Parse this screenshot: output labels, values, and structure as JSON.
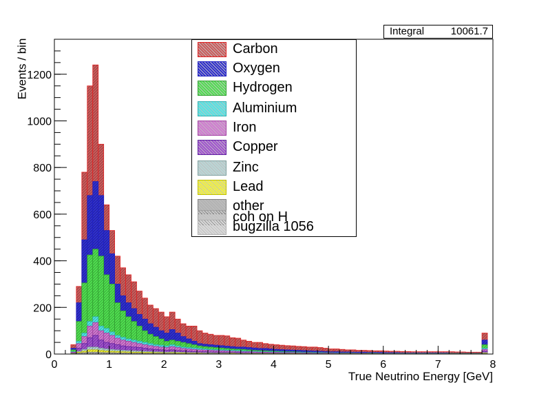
{
  "chart_data": {
    "type": "bar",
    "xlabel": "True Neutrino Energy [GeV]",
    "ylabel": "Events / bin",
    "xlim": [
      0,
      8
    ],
    "ylim": [
      0,
      1350
    ],
    "x_ticks": [
      0,
      1,
      2,
      3,
      4,
      5,
      6,
      7,
      8
    ],
    "y_ticks": [
      0,
      200,
      400,
      600,
      800,
      1000,
      1200
    ],
    "bin_width": 0.1,
    "bin_edges_start": 0.3,
    "stats": {
      "label": "Integral",
      "value": "10061.7"
    },
    "series": [
      {
        "name": "Carbon",
        "color": "#cc5b5b",
        "edge": "#e02020",
        "values": [
          40,
          290,
          780,
          1150,
          1240,
          900,
          640,
          530,
          420,
          370,
          340,
          310,
          270,
          240,
          210,
          195,
          180,
          160,
          180,
          150,
          130,
          120,
          120,
          100,
          90,
          85,
          80,
          80,
          78,
          70,
          68,
          60,
          55,
          50,
          50,
          45,
          42,
          40,
          38,
          36,
          35,
          33,
          32,
          30,
          30,
          28,
          25,
          22,
          22,
          20,
          18,
          18,
          16,
          16,
          15,
          14,
          14,
          13,
          12,
          12,
          11,
          11,
          10,
          10,
          10,
          10,
          10,
          10,
          10,
          10,
          9,
          9,
          8,
          8,
          8,
          90
        ]
      },
      {
        "name": "Oxygen",
        "color": "#2f2fd0",
        "edge": "#2020c0",
        "values": [
          25,
          220,
          490,
          680,
          740,
          680,
          530,
          430,
          300,
          250,
          220,
          195,
          170,
          150,
          130,
          115,
          100,
          90,
          105,
          90,
          75,
          65,
          55,
          45,
          42,
          40,
          38,
          36,
          34,
          32,
          30,
          30,
          28,
          26,
          24,
          24,
          22,
          20,
          19,
          18,
          17,
          16,
          15,
          14,
          13,
          12,
          11,
          10,
          10,
          9,
          9,
          8,
          8,
          8,
          7,
          7,
          7,
          6,
          6,
          6,
          5,
          5,
          5,
          5,
          5,
          5,
          5,
          5,
          5,
          4,
          4,
          4,
          4,
          4,
          4,
          60
        ]
      },
      {
        "name": "Hydrogen",
        "color": "#50e050",
        "edge": "#30a030",
        "values": [
          18,
          140,
          305,
          425,
          450,
          420,
          340,
          300,
          220,
          185,
          160,
          140,
          120,
          100,
          85,
          75,
          65,
          55,
          60,
          55,
          50,
          45,
          40,
          35,
          32,
          30,
          28,
          26,
          24,
          22,
          21,
          20,
          18,
          16,
          15,
          14,
          13,
          12,
          11,
          10,
          10,
          9,
          8,
          8,
          7,
          7,
          6,
          6,
          5,
          5,
          5,
          5,
          4,
          4,
          4,
          4,
          3,
          3,
          3,
          3,
          3,
          3,
          3,
          3,
          3,
          3,
          3,
          3,
          3,
          3,
          3,
          3,
          3,
          3,
          3,
          40
        ]
      },
      {
        "name": "Aluminium",
        "color": "#50e6e6",
        "edge": "#30b0b0",
        "values": [
          10,
          55,
          90,
          140,
          160,
          120,
          110,
          95,
          80,
          72,
          65,
          60,
          55,
          50,
          45,
          40,
          38,
          35,
          40,
          35,
          30,
          28,
          26,
          24,
          22,
          20,
          19,
          18,
          17,
          16,
          15,
          14,
          13,
          12,
          11,
          10,
          10,
          9,
          9,
          8,
          8,
          7,
          7,
          6,
          6,
          6,
          5,
          5,
          5,
          4,
          4,
          4,
          4,
          3,
          3,
          3,
          3,
          3,
          3,
          3,
          3,
          3,
          3,
          3,
          3,
          3,
          3,
          3,
          3,
          2,
          2,
          2,
          2,
          2,
          2,
          25
        ]
      },
      {
        "name": "Iron",
        "color": "#d277d2",
        "edge": "#a040a0",
        "values": [
          8,
          45,
          75,
          120,
          135,
          100,
          90,
          80,
          68,
          60,
          55,
          50,
          45,
          40,
          36,
          33,
          30,
          28,
          32,
          28,
          24,
          22,
          20,
          18,
          17,
          16,
          15,
          14,
          13,
          12,
          11,
          10,
          10,
          9,
          8,
          8,
          7,
          7,
          6,
          6,
          6,
          5,
          5,
          5,
          4,
          4,
          4,
          4,
          3,
          3,
          3,
          3,
          3,
          3,
          2,
          2,
          2,
          2,
          2,
          2,
          2,
          2,
          2,
          2,
          2,
          2,
          2,
          2,
          2,
          2,
          2,
          2,
          2,
          2,
          2,
          20
        ]
      },
      {
        "name": "Copper",
        "color": "#a050d0",
        "edge": "#6020a0",
        "values": [
          5,
          25,
          45,
          70,
          80,
          60,
          50,
          45,
          40,
          35,
          32,
          30,
          28,
          25,
          22,
          20,
          18,
          16,
          18,
          15,
          14,
          12,
          11,
          10,
          10,
          9,
          9,
          8,
          8,
          7,
          7,
          6,
          6,
          5,
          5,
          5,
          4,
          4,
          4,
          4,
          3,
          3,
          3,
          3,
          3,
          3,
          2,
          2,
          2,
          2,
          2,
          2,
          2,
          2,
          2,
          2,
          2,
          2,
          2,
          1,
          1,
          1,
          1,
          1,
          1,
          1,
          1,
          1,
          1,
          1,
          1,
          1,
          1,
          1,
          1,
          12
        ]
      },
      {
        "name": "Zinc",
        "color": "#b9d6d6",
        "edge": "#80a0a0",
        "values": [
          3,
          12,
          20,
          30,
          30,
          25,
          22,
          20,
          18,
          16,
          15,
          14,
          13,
          12,
          11,
          10,
          9,
          8,
          9,
          8,
          7,
          6,
          6,
          5,
          5,
          5,
          4,
          4,
          4,
          4,
          3,
          3,
          3,
          3,
          3,
          3,
          2,
          2,
          2,
          2,
          2,
          2,
          2,
          2,
          2,
          2,
          2,
          1,
          1,
          1,
          1,
          1,
          1,
          1,
          1,
          1,
          1,
          1,
          1,
          1,
          1,
          1,
          1,
          1,
          1,
          1,
          1,
          1,
          1,
          1,
          1,
          1,
          1,
          1,
          1,
          6
        ]
      },
      {
        "name": "Lead",
        "color": "#f5f53a",
        "edge": "#c0c000",
        "values": [
          2,
          8,
          12,
          18,
          18,
          15,
          13,
          12,
          11,
          10,
          9,
          8,
          8,
          7,
          7,
          6,
          6,
          5,
          6,
          5,
          5,
          4,
          4,
          4,
          3,
          3,
          3,
          3,
          3,
          3,
          2,
          2,
          2,
          2,
          2,
          2,
          2,
          2,
          2,
          2,
          2,
          2,
          1,
          1,
          1,
          1,
          1,
          1,
          1,
          1,
          1,
          1,
          1,
          1,
          1,
          1,
          1,
          1,
          1,
          1,
          1,
          1,
          1,
          1,
          1,
          1,
          1,
          1,
          1,
          1,
          1,
          1,
          1,
          1,
          1,
          4
        ]
      },
      {
        "name": "other",
        "color": "#b3b3b3",
        "edge": "#808080",
        "values": [
          1,
          4,
          6,
          8,
          8,
          7,
          6,
          6,
          5,
          5,
          4,
          4,
          4,
          3,
          3,
          3,
          3,
          3,
          3,
          2,
          2,
          2,
          2,
          2,
          2,
          2,
          2,
          2,
          2,
          1,
          1,
          1,
          1,
          1,
          1,
          1,
          1,
          1,
          1,
          1,
          1,
          1,
          1,
          1,
          1,
          1,
          1,
          1,
          1,
          1,
          1,
          1,
          1,
          1,
          1,
          1,
          1,
          1,
          1,
          1,
          1,
          1,
          1,
          1,
          1,
          1,
          1,
          1,
          1,
          1,
          1,
          1,
          1,
          1,
          1,
          2
        ]
      },
      {
        "name": "coh on H",
        "color": "#c7c7c7",
        "edge": "#a0a0a0",
        "values": []
      },
      {
        "name": "bugzilla 1056",
        "color": "#d9d9d9",
        "edge": "#b0b0b0",
        "values": []
      }
    ]
  }
}
